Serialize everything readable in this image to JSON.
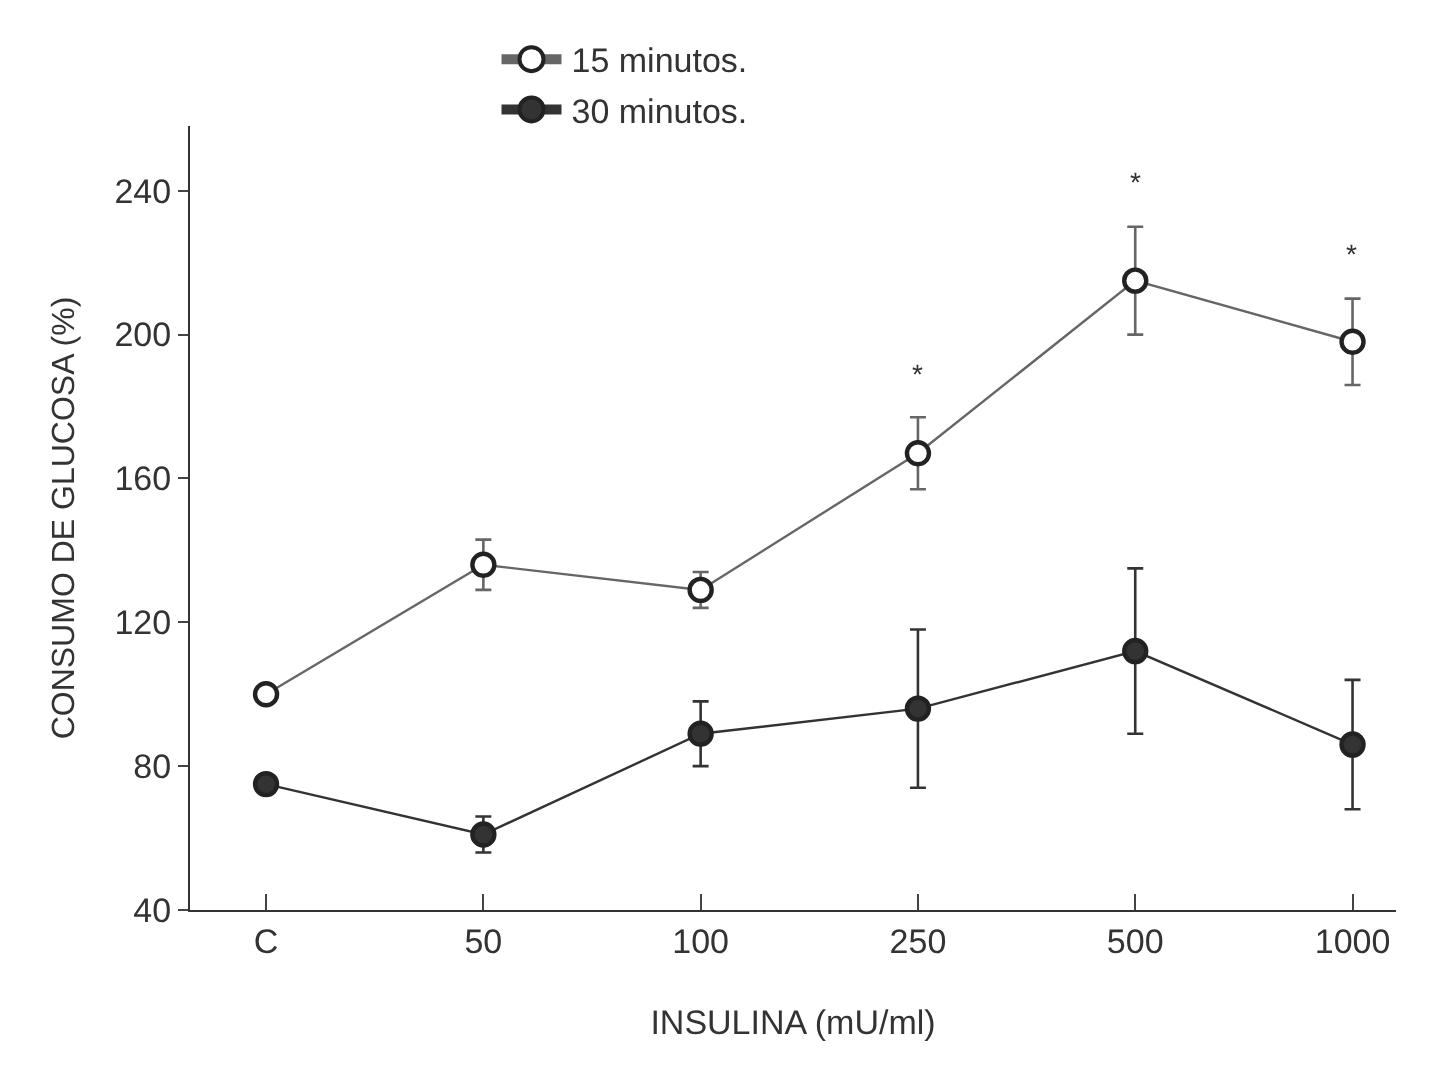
{
  "chart_data": {
    "type": "line",
    "xlabel": "INSULINA (mU/ml)",
    "ylabel": "CONSUMO DE GLUCOSA (%)",
    "categories": [
      "C",
      "50",
      "100",
      "250",
      "500",
      "1000"
    ],
    "series": [
      {
        "name": "15 minutos.",
        "color": "#666666",
        "values": [
          100,
          136,
          129,
          167,
          215,
          198
        ],
        "errors": [
          null,
          7,
          5,
          10,
          15,
          12
        ]
      },
      {
        "name": "30 minutos.",
        "color": "#333333",
        "values": [
          75,
          61,
          89,
          96,
          112,
          86
        ],
        "errors": [
          null,
          5,
          9,
          22,
          23,
          18
        ]
      }
    ],
    "ylim": [
      40,
      258
    ],
    "yticks": [
      40,
      80,
      120,
      160,
      200,
      240
    ],
    "annotations": [
      "*",
      "*",
      "*"
    ],
    "marker": "circle",
    "line_style": "solid",
    "legend": "top left"
  }
}
